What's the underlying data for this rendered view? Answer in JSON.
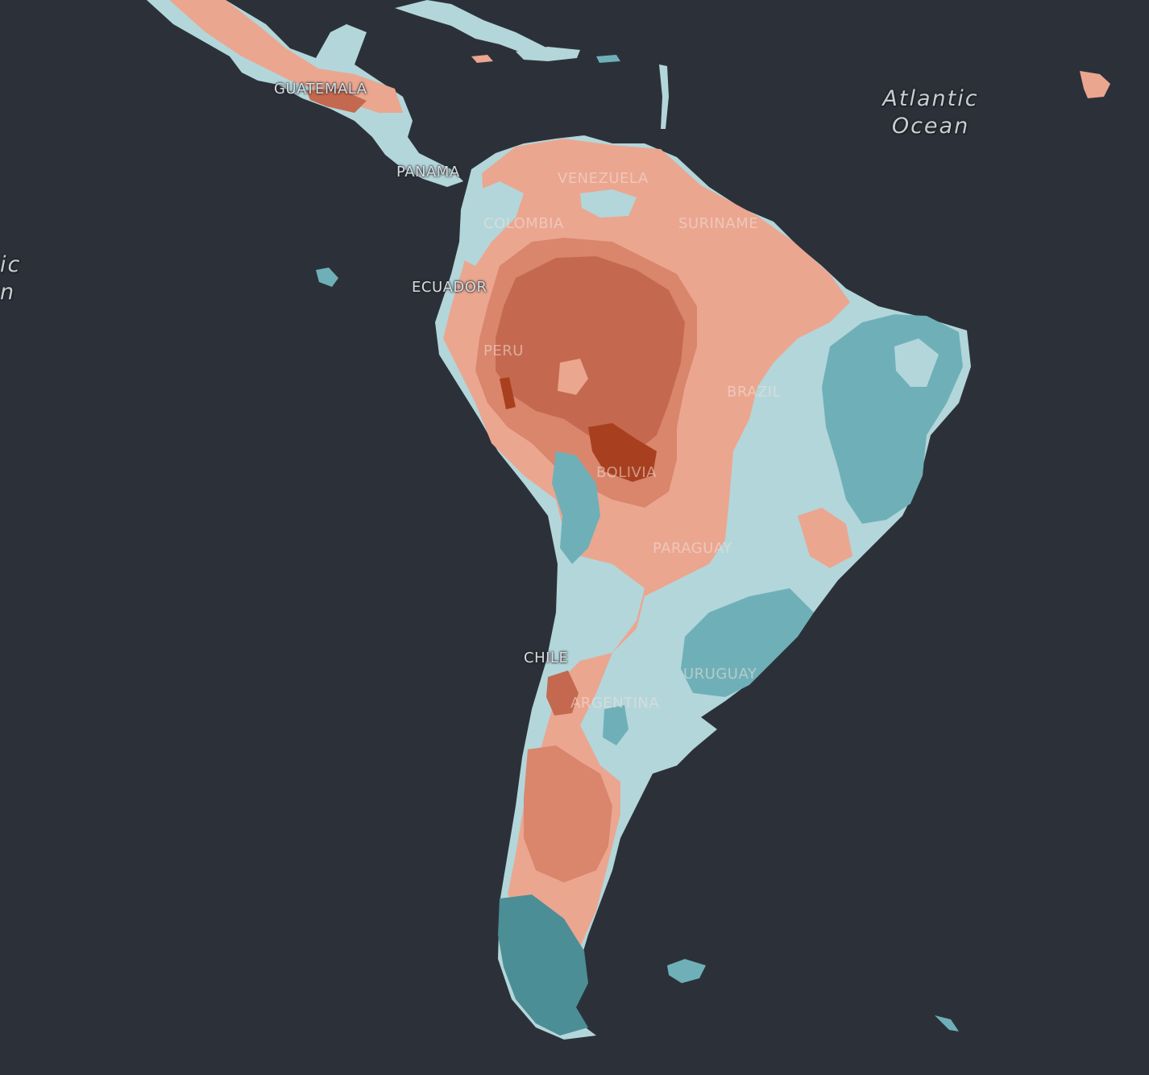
{
  "map": {
    "colors": {
      "background": "#2c3139",
      "land_base": "#b3d6da",
      "warm_light": "#eba690",
      "warm_mid": "#d9866c",
      "warm_dark": "#c4694f",
      "warm_deep": "#a8401f",
      "cool_light": "#b3d6da",
      "cool_mid": "#6fb0b8",
      "cool_dark": "#4b8e96"
    },
    "labels": {
      "atlantic_1": "Atlantic",
      "atlantic_2": "Ocean",
      "pacific_1": "ic",
      "pacific_2": "n",
      "guatemala": "GUATEMALA",
      "panama": "PANAMA",
      "venezuela": "VENEZUELA",
      "colombia": "COLOMBIA",
      "suriname": "SURINAME",
      "ecuador": "ECUADOR",
      "peru": "PERU",
      "brazil": "BRAZIL",
      "bolivia": "BOLIVIA",
      "paraguay": "PARAGUAY",
      "chile": "CHILE",
      "argentina": "ARGENTINA",
      "uruguay": "URUGUAY"
    }
  }
}
